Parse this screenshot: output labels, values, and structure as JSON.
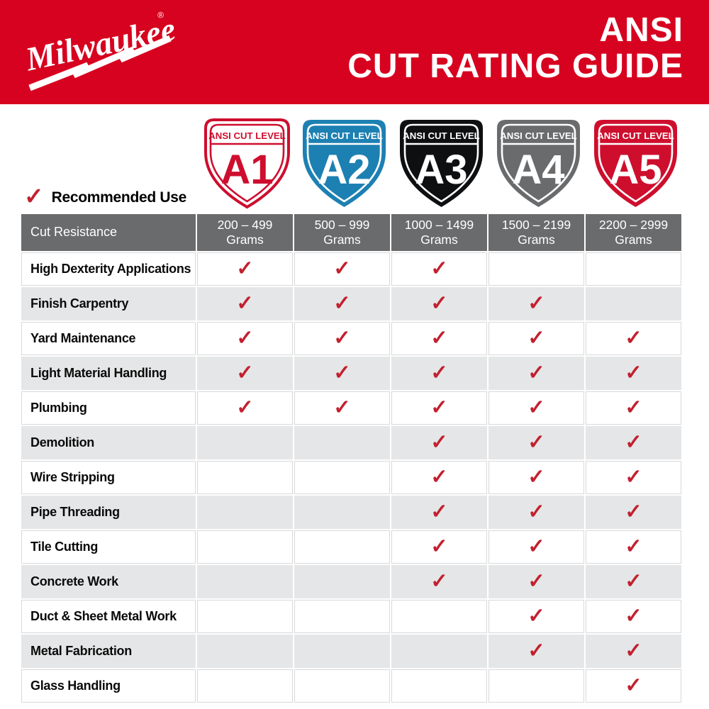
{
  "banner": {
    "brand": "Milwaukee",
    "reg_mark": "®",
    "title_line1": "ANSI",
    "title_line2": "CUT RATING GUIDE",
    "bg_color": "#d7021f"
  },
  "shields": [
    {
      "level": "A1",
      "band_label": "ANSI CUT LEVEL",
      "bg": "#ffffff",
      "fg": "#ce0e2f",
      "outlined": true
    },
    {
      "level": "A2",
      "band_label": "ANSI CUT LEVEL",
      "bg": "#1d80b2",
      "fg": "#ffffff",
      "outlined": false
    },
    {
      "level": "A3",
      "band_label": "ANSI CUT LEVEL",
      "bg": "#0e0f11",
      "fg": "#ffffff",
      "outlined": false
    },
    {
      "level": "A4",
      "band_label": "ANSI CUT LEVEL",
      "bg": "#6a6b6d",
      "fg": "#ffffff",
      "outlined": false
    },
    {
      "level": "A5",
      "band_label": "ANSI CUT LEVEL",
      "bg": "#ce0e2d",
      "fg": "#ffffff",
      "outlined": false
    }
  ],
  "legend": {
    "check_glyph": "✓",
    "label": "Recommended Use",
    "check_color": "#c2202e"
  },
  "table": {
    "corner_header": "Cut Resistance",
    "columns": [
      {
        "range": "200 – 499",
        "unit": "Grams"
      },
      {
        "range": "500 – 999",
        "unit": "Grams"
      },
      {
        "range": "1000 – 1499",
        "unit": "Grams"
      },
      {
        "range": "1500 – 2199",
        "unit": "Grams"
      },
      {
        "range": "2200 – 2999",
        "unit": "Grams"
      }
    ],
    "check_glyph": "✓",
    "check_color": "#c2202e",
    "header_bg": "#6a6b6d",
    "stripe_bg": "#e5e6e7",
    "rows": [
      {
        "label": "High Dexterity Applications",
        "checks": [
          true,
          true,
          true,
          false,
          false
        ]
      },
      {
        "label": "Finish Carpentry",
        "checks": [
          true,
          true,
          true,
          true,
          false
        ]
      },
      {
        "label": "Yard Maintenance",
        "checks": [
          true,
          true,
          true,
          true,
          true
        ]
      },
      {
        "label": "Light Material Handling",
        "checks": [
          true,
          true,
          true,
          true,
          true
        ]
      },
      {
        "label": "Plumbing",
        "checks": [
          true,
          true,
          true,
          true,
          true
        ]
      },
      {
        "label": "Demolition",
        "checks": [
          false,
          false,
          true,
          true,
          true
        ]
      },
      {
        "label": "Wire Stripping",
        "checks": [
          false,
          false,
          true,
          true,
          true
        ]
      },
      {
        "label": "Pipe Threading",
        "checks": [
          false,
          false,
          true,
          true,
          true
        ]
      },
      {
        "label": "Tile Cutting",
        "checks": [
          false,
          false,
          true,
          true,
          true
        ]
      },
      {
        "label": "Concrete Work",
        "checks": [
          false,
          false,
          true,
          true,
          true
        ]
      },
      {
        "label": "Duct & Sheet Metal Work",
        "checks": [
          false,
          false,
          false,
          true,
          true
        ]
      },
      {
        "label": "Metal Fabrication",
        "checks": [
          false,
          false,
          false,
          true,
          true
        ]
      },
      {
        "label": "Glass Handling",
        "checks": [
          false,
          false,
          false,
          false,
          true
        ]
      }
    ]
  }
}
